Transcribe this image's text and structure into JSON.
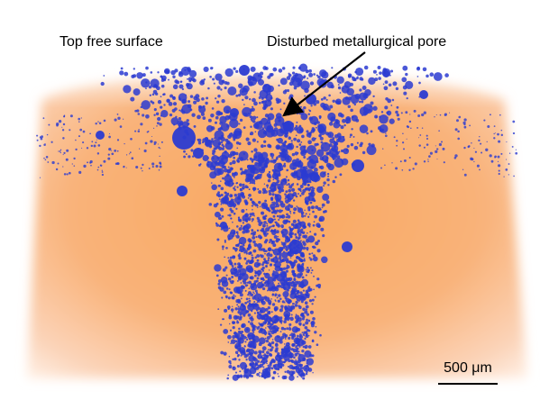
{
  "image": {
    "annotations": {
      "top_surface_label": "Top free surface",
      "pore_label": "Disturbed metallurgical pore"
    },
    "scale_bar": {
      "text": "500 μm"
    },
    "colors": {
      "matrix": "#f7a05a",
      "pores": "#2b3bd1",
      "background": "#ffffff"
    }
  }
}
